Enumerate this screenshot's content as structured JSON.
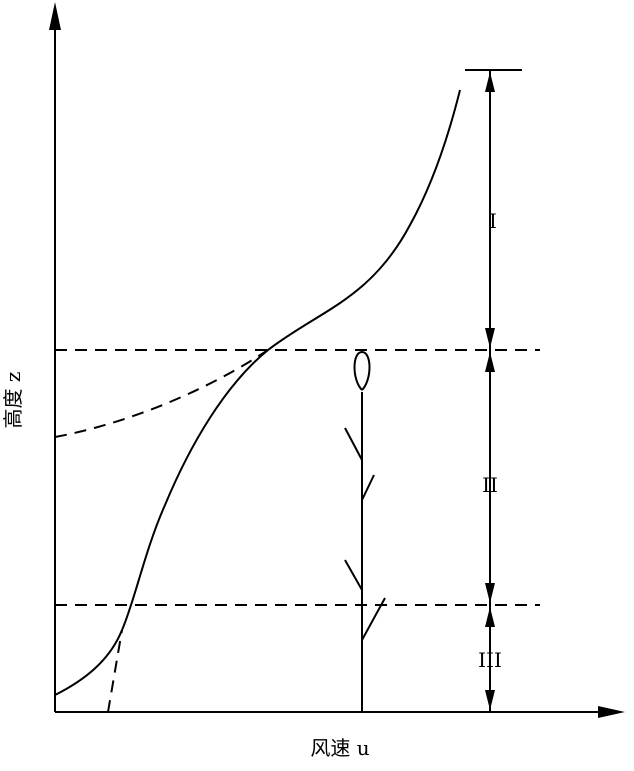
{
  "axes": {
    "y_label": "高度 z",
    "x_label": "风速 u"
  },
  "layers": [
    "I",
    "II",
    "III"
  ]
}
